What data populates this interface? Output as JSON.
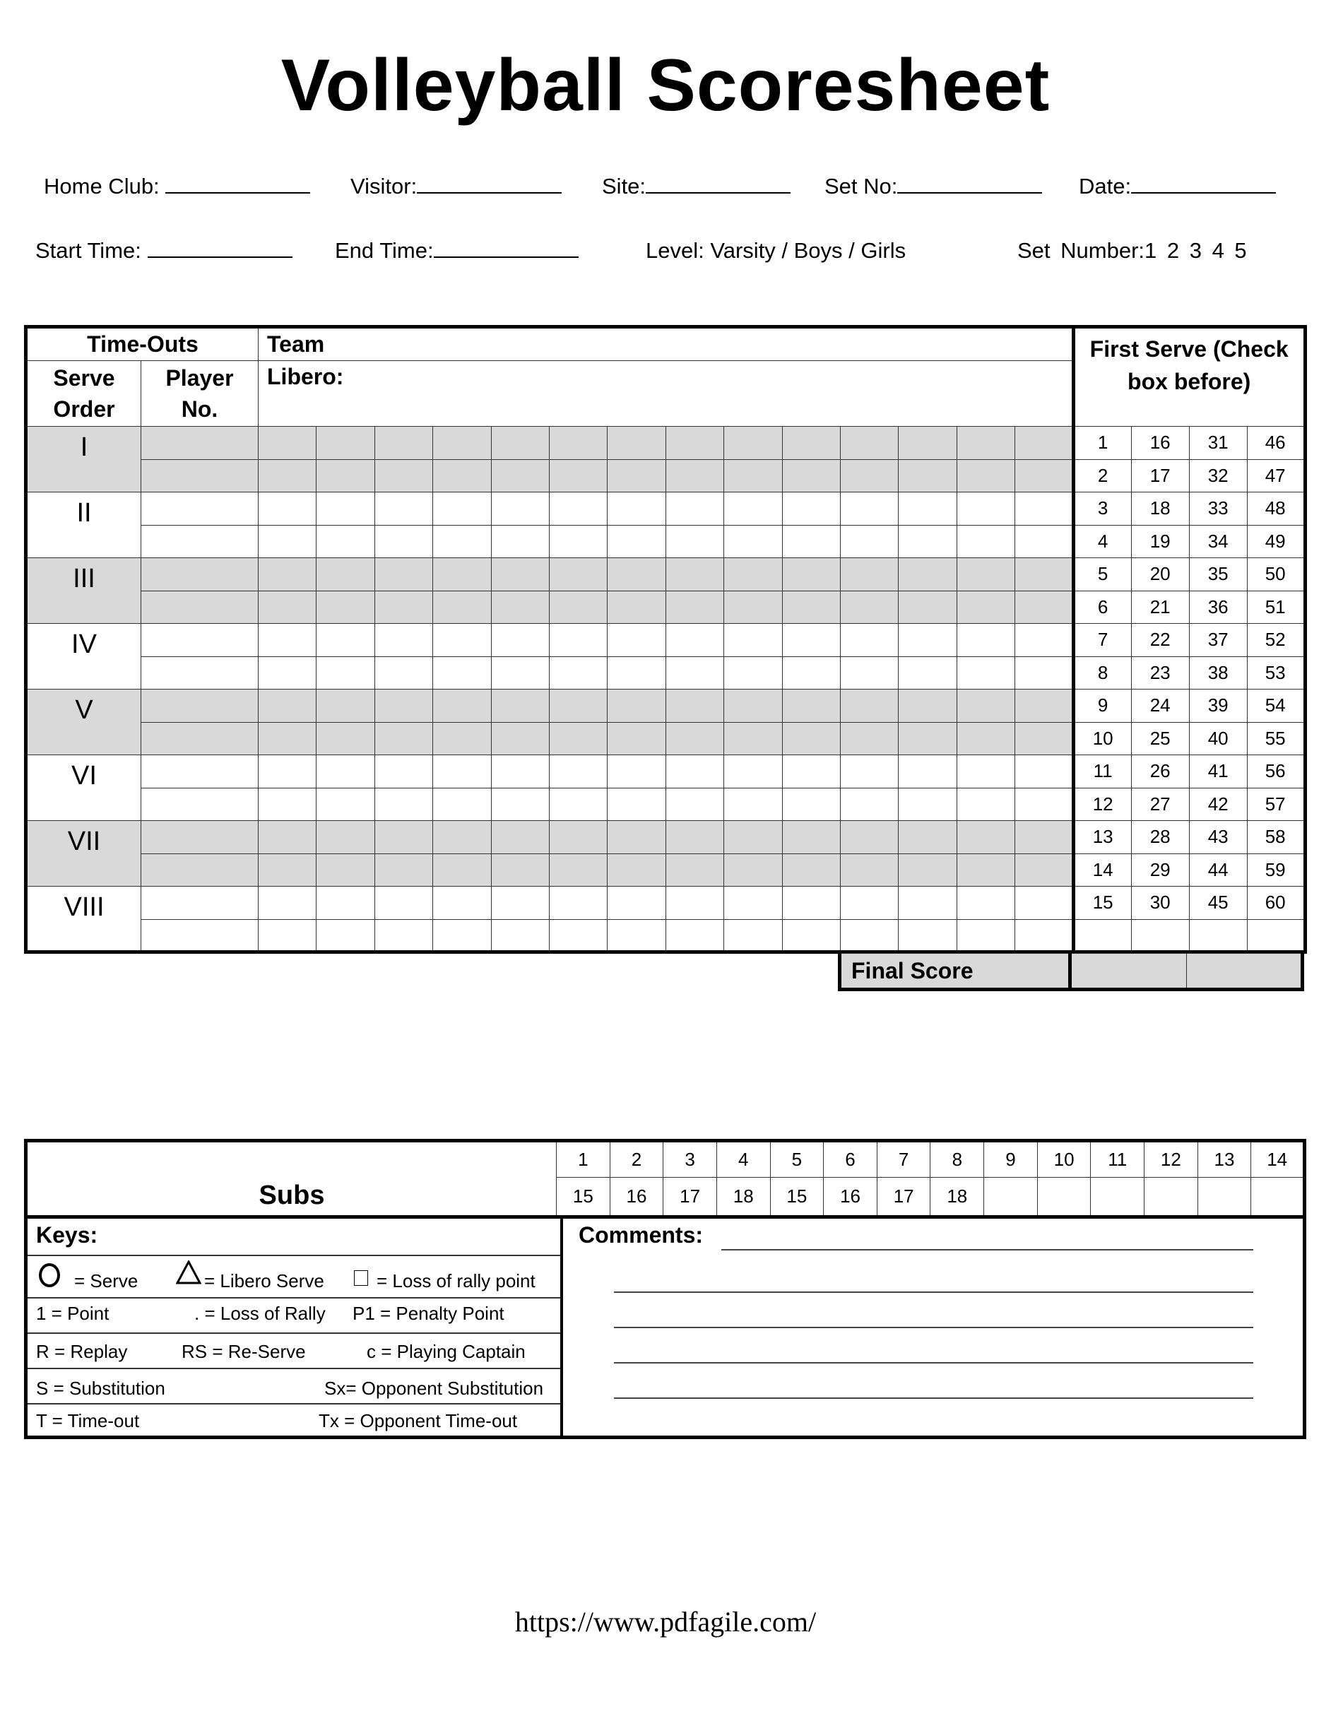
{
  "title": "Volleyball Scoresheet",
  "header": {
    "home_club": "Home Club:",
    "visitor": "Visitor:",
    "site": "Site:",
    "set_no": "Set No:",
    "date": "Date:",
    "start_time": "Start Time:",
    "end_time": "End Time:",
    "level": "Level: Varsity / Boys / Girls",
    "set_number": "Set Number:1  2  3  4  5"
  },
  "main_table": {
    "time_outs": "Time-Outs",
    "team": "Team",
    "serve_order": "Serve Order",
    "player_no": "Player No.",
    "libero": "Libero:",
    "first_serve": "First Serve (Check box  before)",
    "serve_orders": [
      "I",
      "II",
      "III",
      "IV",
      "V",
      "VI",
      "VII",
      "VIII"
    ],
    "first_serve_numbers": [
      [
        "1",
        "16",
        "31",
        "46"
      ],
      [
        "2",
        "17",
        "32",
        "47"
      ],
      [
        "3",
        "18",
        "33",
        "48"
      ],
      [
        "4",
        "19",
        "34",
        "49"
      ],
      [
        "5",
        "20",
        "35",
        "50"
      ],
      [
        "6",
        "21",
        "36",
        "51"
      ],
      [
        "7",
        "22",
        "37",
        "52"
      ],
      [
        "8",
        "23",
        "38",
        "53"
      ],
      [
        "9",
        "24",
        "39",
        "54"
      ],
      [
        "10",
        "25",
        "40",
        "55"
      ],
      [
        "11",
        "26",
        "41",
        "56"
      ],
      [
        "12",
        "27",
        "42",
        "57"
      ],
      [
        "13",
        "28",
        "43",
        "58"
      ],
      [
        "14",
        "29",
        "44",
        "59"
      ],
      [
        "15",
        "30",
        "45",
        "60"
      ],
      [
        "",
        "",
        "",
        ""
      ]
    ],
    "final_score": "Final Score"
  },
  "subs": {
    "label": "Subs",
    "row1": [
      "1",
      "2",
      "3",
      "4",
      "5",
      "6",
      "7",
      "8",
      "9",
      "10",
      "11",
      "12",
      "13",
      "14"
    ],
    "row2": [
      "15",
      "16",
      "17",
      "18",
      "15",
      "16",
      "17",
      "18",
      "",
      "",
      "",
      "",
      "",
      ""
    ]
  },
  "keys": {
    "label": "Keys:",
    "serve": "= Serve",
    "libero_serve": "= Libero Serve",
    "loss_rally_point": "=  Loss of rally point",
    "point": "1 = Point",
    "loss_rally": ". = Loss of Rally",
    "penalty": "P1 = Penalty Point",
    "replay": "R = Replay",
    "reserve": "RS = Re-Serve",
    "captain": "c = Playing Captain",
    "substitution": "S = Substitution",
    "opp_sub": "Sx= Opponent Substitution",
    "timeout": "T = Time-out",
    "opp_timeout": "Tx = Opponent Time-out"
  },
  "comments": {
    "label": "Comments:"
  },
  "footer_url": "https://www.pdfagile.com/",
  "colors": {
    "shade": "#d9d9d9",
    "border": "#000000"
  }
}
